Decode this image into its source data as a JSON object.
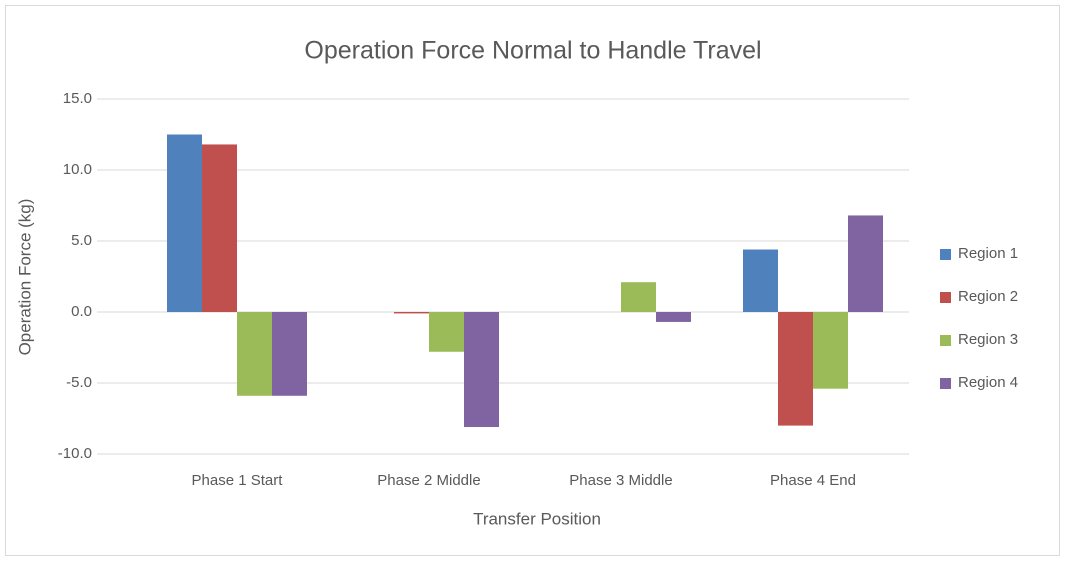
{
  "chart_data": {
    "type": "bar",
    "title": "Operation Force Normal to Handle Travel",
    "x_label": "Transfer Position",
    "y_label": "Operation Force (kg)",
    "categories": [
      "Phase 1 Start",
      "Phase 2 Middle",
      "Phase 3 Middle",
      "Phase 4 End"
    ],
    "series": [
      {
        "name": "Region 1",
        "color": "#4f81bd",
        "values": [
          12.5,
          0,
          0,
          4.4
        ]
      },
      {
        "name": "Region 2",
        "color": "#c0504d",
        "values": [
          11.8,
          -0.1,
          0,
          -8.0
        ]
      },
      {
        "name": "Region 3",
        "color": "#9bbb59",
        "values": [
          -5.9,
          -2.8,
          2.1,
          -5.4
        ]
      },
      {
        "name": "Region 4",
        "color": "#8064a2",
        "values": [
          -5.9,
          -8.1,
          -0.7,
          6.8
        ]
      }
    ],
    "ylim": [
      -10,
      15
    ],
    "yticks": [
      {
        "value": -10,
        "label": "-10.0"
      },
      {
        "value": -5,
        "label": "-5.0"
      },
      {
        "value": 0,
        "label": "0.0"
      },
      {
        "value": 5,
        "label": "5.0"
      },
      {
        "value": 10,
        "label": "10.0"
      },
      {
        "value": 15,
        "label": "15.0"
      }
    ],
    "grid": true,
    "legend": "right"
  }
}
